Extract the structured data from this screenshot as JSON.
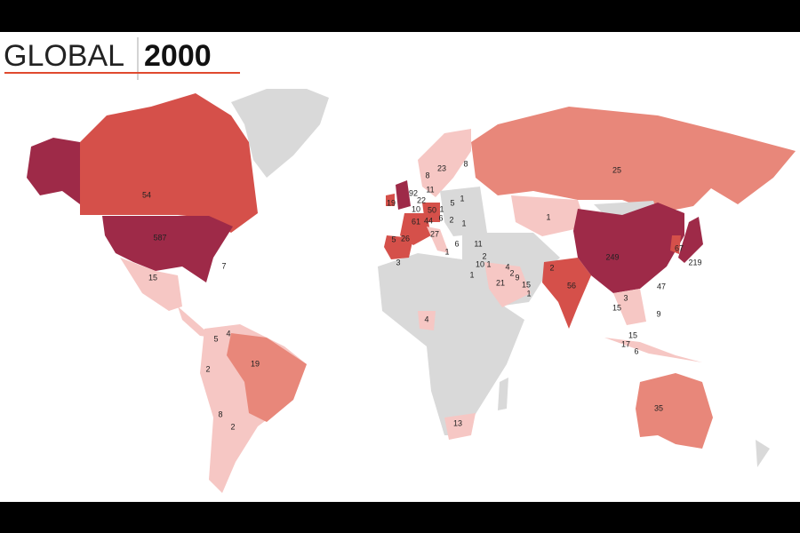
{
  "header": {
    "title_light": "GLOBAL",
    "title_bold": "2000"
  },
  "map": {
    "labels": [
      54,
      587,
      7,
      15,
      4,
      5,
      19,
      2,
      8,
      2,
      8,
      23,
      8,
      11,
      5,
      19,
      92,
      22,
      1,
      10,
      50,
      1,
      61,
      44,
      6,
      2,
      1,
      5,
      26,
      27,
      6,
      11,
      3,
      1,
      25,
      1,
      2,
      10,
      1,
      4,
      2,
      9,
      1,
      21,
      15,
      1,
      2,
      56,
      249,
      67,
      219,
      3,
      47,
      15,
      9,
      4,
      15,
      17,
      6,
      13,
      35
    ]
  }
}
